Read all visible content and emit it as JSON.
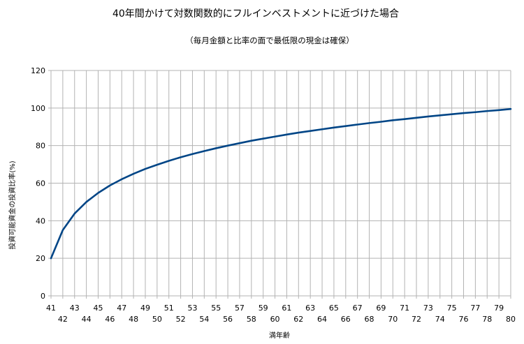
{
  "chart_data": {
    "type": "line",
    "title": "40年間かけて対数関数的にフルインベストメントに近づけた場合",
    "subtitle": "（毎月金額と比率の面で最低限の現金は確保）",
    "xlabel": "満年齢",
    "ylabel": "投資可能資金の投資比率(%)",
    "x": [
      41,
      42,
      43,
      44,
      45,
      46,
      47,
      48,
      49,
      50,
      51,
      52,
      53,
      54,
      55,
      56,
      57,
      58,
      59,
      60,
      61,
      62,
      63,
      64,
      65,
      66,
      67,
      68,
      69,
      70,
      71,
      72,
      73,
      74,
      75,
      76,
      77,
      78,
      79,
      80
    ],
    "series": [
      {
        "color": "#004586",
        "values": [
          20,
          35.0,
          43.8,
          50.0,
          54.8,
          58.8,
          62.1,
          65.0,
          67.6,
          69.8,
          71.9,
          73.8,
          75.5,
          77.1,
          78.6,
          80.0,
          81.3,
          82.6,
          83.7,
          84.8,
          85.9,
          86.9,
          87.8,
          88.7,
          89.6,
          90.4,
          91.2,
          92.0,
          92.7,
          93.5,
          94.1,
          94.8,
          95.5,
          96.1,
          96.7,
          97.3,
          97.8,
          98.4,
          98.9,
          99.5
        ]
      }
    ],
    "xlim": [
      41,
      80
    ],
    "ylim": [
      0,
      120
    ],
    "yticks": [
      0,
      20,
      40,
      60,
      80,
      100,
      120
    ],
    "grid": true,
    "legend": "none",
    "colors": {
      "line": "#004586",
      "grid": "#b3b3b3",
      "axis": "#b3b3b3"
    }
  }
}
